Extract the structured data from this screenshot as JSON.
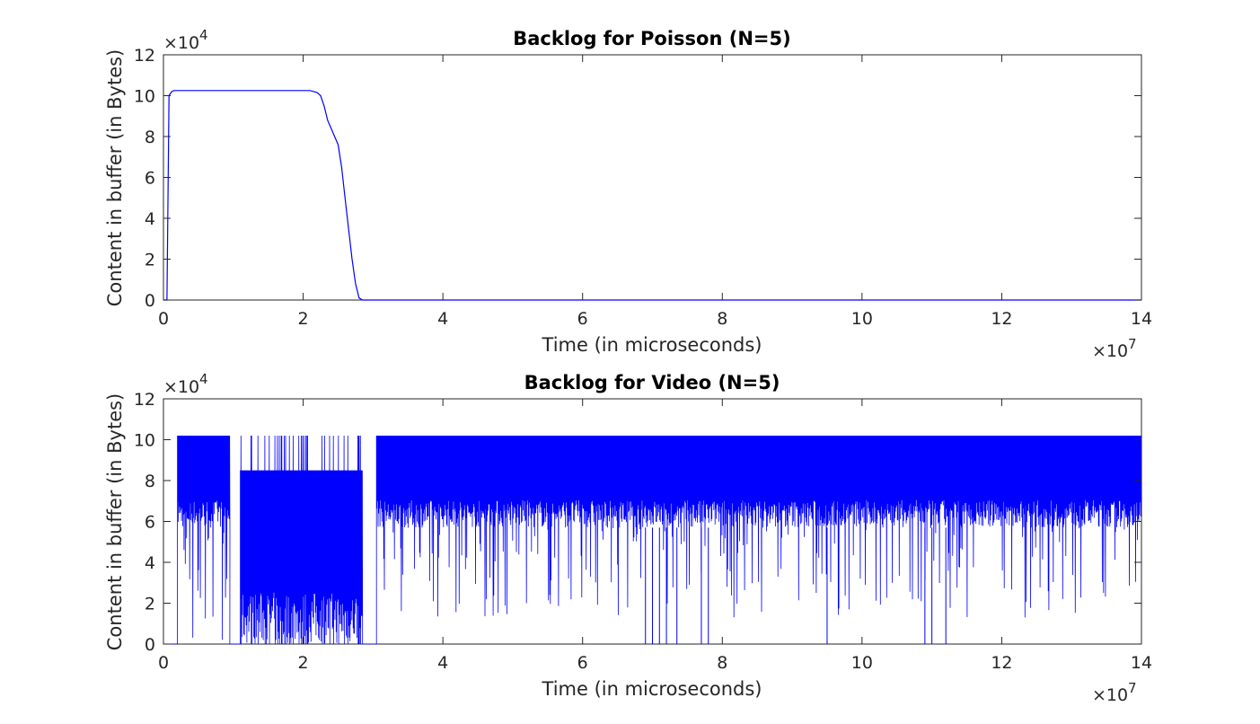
{
  "chart_data": [
    {
      "type": "line",
      "title": "Backlog for Poisson (N=5)",
      "xlabel": "Time (in microseconds)",
      "ylabel": "Content in buffer (in Bytes)",
      "x_multiplier": "×10",
      "x_exponent": "7",
      "y_multiplier": "×10",
      "y_exponent": "4",
      "xlim": [
        0,
        14
      ],
      "ylim": [
        0,
        12
      ],
      "xticks": [
        "0",
        "2",
        "4",
        "6",
        "8",
        "10",
        "12",
        "14"
      ],
      "yticks": [
        "0",
        "2",
        "4",
        "6",
        "8",
        "10",
        "12"
      ],
      "line_color": "#0000ff",
      "series": [
        {
          "x": [
            0,
            0.05,
            0.08,
            0.12,
            0.15,
            0.2,
            0.5,
            1.0,
            1.5,
            2.0,
            2.1,
            2.2,
            2.25,
            2.3,
            2.35,
            2.4,
            2.45,
            2.5,
            2.55,
            2.6,
            2.65,
            2.7,
            2.75,
            2.8,
            2.85,
            3.0,
            6.0,
            10.0,
            14.0
          ],
          "y": [
            0,
            0,
            10.0,
            10.2,
            10.25,
            10.25,
            10.25,
            10.25,
            10.25,
            10.25,
            10.25,
            10.15,
            10.0,
            9.5,
            8.8,
            8.4,
            8.0,
            7.6,
            6.5,
            5.0,
            3.5,
            2.0,
            0.8,
            0.1,
            0,
            0,
            0,
            0,
            0
          ]
        }
      ]
    },
    {
      "type": "line",
      "title": "Backlog for Video (N=5)",
      "xlabel": "Time (in microseconds)",
      "ylabel": "Content in buffer (in Bytes)",
      "x_multiplier": "×10",
      "x_exponent": "7",
      "y_multiplier": "×10",
      "y_exponent": "4",
      "xlim": [
        0,
        14
      ],
      "ylim": [
        0,
        12
      ],
      "xticks": [
        "0",
        "2",
        "4",
        "6",
        "8",
        "10",
        "12",
        "14"
      ],
      "yticks": [
        "0",
        "2",
        "4",
        "6",
        "8",
        "10",
        "12"
      ],
      "line_color": "#0000ff",
      "series": [
        {
          "segments": [
            {
              "x_start": 0,
              "x_end": 0.2,
              "low": 0,
              "high": 0
            },
            {
              "x_start": 0.2,
              "x_end": 0.95,
              "low": 0,
              "high": 10.2,
              "band_low": 5.7,
              "band_high": 10.2
            },
            {
              "x_start": 0.95,
              "x_end": 1.1,
              "low": 0,
              "high": 0
            },
            {
              "x_start": 1.1,
              "x_end": 2.85,
              "low": 0,
              "high": 10.2,
              "band_low": 0,
              "band_high": 8.5
            },
            {
              "x_start": 2.85,
              "x_end": 3.05,
              "low": 0,
              "high": 0
            },
            {
              "x_start": 3.05,
              "x_end": 14.0,
              "low": 1.3,
              "high": 10.2,
              "band_low": 5.7,
              "band_high": 10.2
            }
          ],
          "dips": [
            {
              "x": 6.9,
              "y": 0
            },
            {
              "x": 7.0,
              "y": 0
            },
            {
              "x": 7.1,
              "y": 0
            },
            {
              "x": 7.2,
              "y": 0
            },
            {
              "x": 7.35,
              "y": 0
            },
            {
              "x": 7.7,
              "y": 0
            },
            {
              "x": 7.8,
              "y": 0
            },
            {
              "x": 9.5,
              "y": 0
            },
            {
              "x": 10.9,
              "y": 0
            },
            {
              "x": 11.0,
              "y": 0
            },
            {
              "x": 11.2,
              "y": 0
            }
          ]
        }
      ]
    }
  ]
}
